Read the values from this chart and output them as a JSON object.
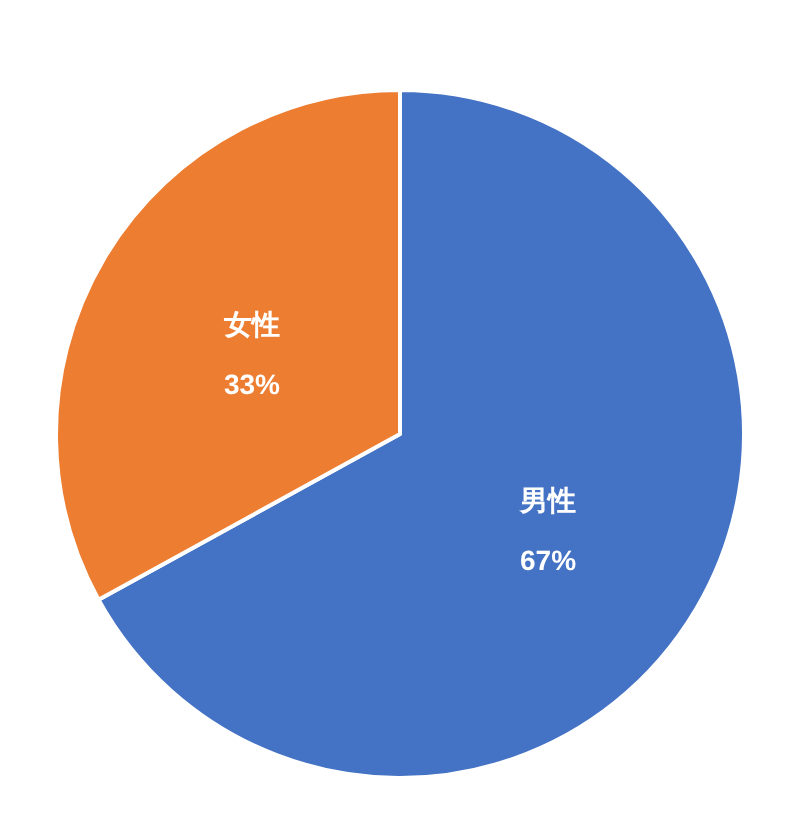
{
  "chart_data": {
    "type": "pie",
    "categories": [
      "男性",
      "女性"
    ],
    "values": [
      67,
      33
    ],
    "colors": [
      "#4472c4",
      "#ed7d31"
    ],
    "value_labels": [
      "67%",
      "33%"
    ]
  }
}
